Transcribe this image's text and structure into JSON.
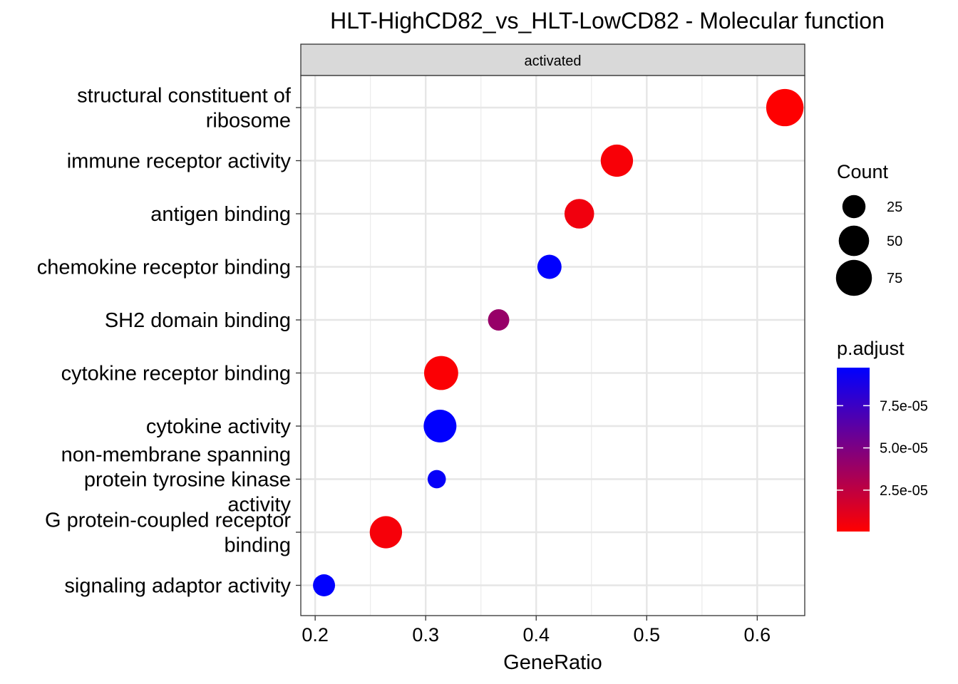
{
  "chart_data": {
    "type": "scatter",
    "title": "HLT-HighCD82_vs_HLT-LowCD82 - Molecular function",
    "facet_label": "activated",
    "xlabel": "GeneRatio",
    "ylabel": "",
    "xlim": [
      0.187,
      0.643
    ],
    "x_ticks": [
      0.2,
      0.3,
      0.4,
      0.5,
      0.6
    ],
    "x_tick_labels": [
      "0.2",
      "0.3",
      "0.4",
      "0.5",
      "0.6"
    ],
    "grid": true,
    "legend_position": "right",
    "categories": [
      [
        "structural constituent of",
        "ribosome"
      ],
      [
        "immune receptor activity"
      ],
      [
        "antigen binding"
      ],
      [
        "chemokine receptor binding"
      ],
      [
        "SH2 domain binding"
      ],
      [
        "cytokine receptor binding"
      ],
      [
        "cytokine activity"
      ],
      [
        "non-membrane spanning",
        "protein tyrosine kinase",
        "activity"
      ],
      [
        "G protein-coupled receptor",
        "binding"
      ],
      [
        "signaling adaptor activity"
      ]
    ],
    "points": [
      {
        "gene_ratio": 0.625,
        "count": 82,
        "p_adjust": 1e-06
      },
      {
        "gene_ratio": 0.473,
        "count": 58,
        "p_adjust": 3e-06
      },
      {
        "gene_ratio": 0.439,
        "count": 47,
        "p_adjust": 6e-06
      },
      {
        "gene_ratio": 0.412,
        "count": 28,
        "p_adjust": 9.7e-05
      },
      {
        "gene_ratio": 0.366,
        "count": 20,
        "p_adjust": 4e-05
      },
      {
        "gene_ratio": 0.314,
        "count": 66,
        "p_adjust": 2e-06
      },
      {
        "gene_ratio": 0.313,
        "count": 60,
        "p_adjust": 9.7e-05
      },
      {
        "gene_ratio": 0.31,
        "count": 13,
        "p_adjust": 9.5e-05
      },
      {
        "gene_ratio": 0.264,
        "count": 58,
        "p_adjust": 4e-06
      },
      {
        "gene_ratio": 0.208,
        "count": 22,
        "p_adjust": 9.7e-05
      }
    ],
    "size_legend": {
      "title": "Count",
      "values": [
        25,
        50,
        75
      ],
      "labels": [
        "25",
        "50",
        "75"
      ]
    },
    "color_legend": {
      "title": "p.adjust",
      "low_color": "#FF0000",
      "high_color": "#0000FF",
      "min": 5e-07,
      "max": 9.75e-05,
      "ticks": [
        2.5e-05,
        5e-05,
        7.5e-05
      ],
      "tick_labels": [
        "2.5e-05",
        "5.0e-05",
        "7.5e-05"
      ]
    }
  }
}
